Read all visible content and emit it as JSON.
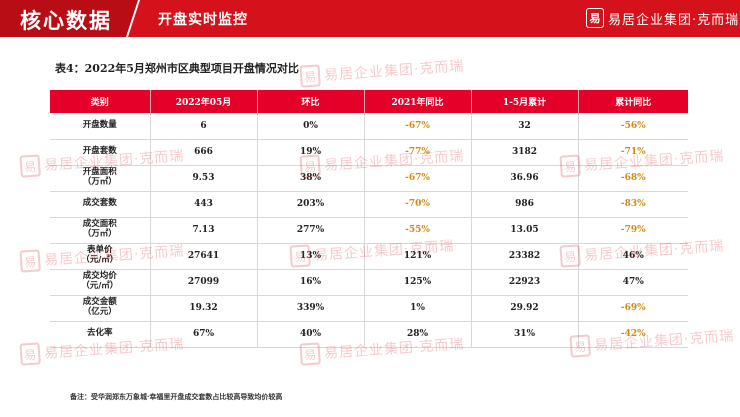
{
  "header": {
    "title": "核心数据",
    "subtitle": "开盘实时监控",
    "logo_mark": "易",
    "logo_text": "易居企业集团·克而瑞"
  },
  "table_title": "表4：2022年5月郑州市区典型项目开盘情况对比",
  "columns": [
    "类别",
    "2022年05月",
    "环比",
    "2021年同比",
    "1-5月累计",
    "累计同比"
  ],
  "rows": [
    {
      "cat": "开盘数量",
      "v1": "6",
      "v2": "0%",
      "v3": "-67%",
      "v4": "32",
      "v5": "-56%"
    },
    {
      "cat": "开盘套数",
      "v1": "666",
      "v2": "19%",
      "v3": "-77%",
      "v4": "3182",
      "v5": "-71%"
    },
    {
      "cat": "开盘面积\n（万㎡）",
      "v1": "9.53",
      "v2": "38%",
      "v3": "-67%",
      "v4": "36.96",
      "v5": "-68%"
    },
    {
      "cat": "成交套数",
      "v1": "443",
      "v2": "203%",
      "v3": "-70%",
      "v4": "986",
      "v5": "-83%"
    },
    {
      "cat": "成交面积\n（万㎡）",
      "v1": "7.13",
      "v2": "277%",
      "v3": "-55%",
      "v4": "13.05",
      "v5": "-79%"
    },
    {
      "cat": "表单价\n（元/㎡）",
      "v1": "27641",
      "v2": "13%",
      "v3": "121%",
      "v4": "23382",
      "v5": "46%"
    },
    {
      "cat": "成交均价\n（元/㎡）",
      "v1": "27099",
      "v2": "16%",
      "v3": "125%",
      "v4": "22923",
      "v5": "47%"
    },
    {
      "cat": "成交金额\n（亿元）",
      "v1": "19.32",
      "v2": "339%",
      "v3": "1%",
      "v4": "29.92",
      "v5": "-69%"
    },
    {
      "cat": "去化率",
      "v1": "67%",
      "v2": "40%",
      "v3": "28%",
      "v4": "31%",
      "v5": "-42%"
    }
  ],
  "note": "备注：受华润郑东万象城·幸福里开盘成交套数占比较高导致均价较高",
  "colors": {
    "brand": "#d5121c",
    "header_row": "#e5002a",
    "negative": "#d38a12"
  }
}
